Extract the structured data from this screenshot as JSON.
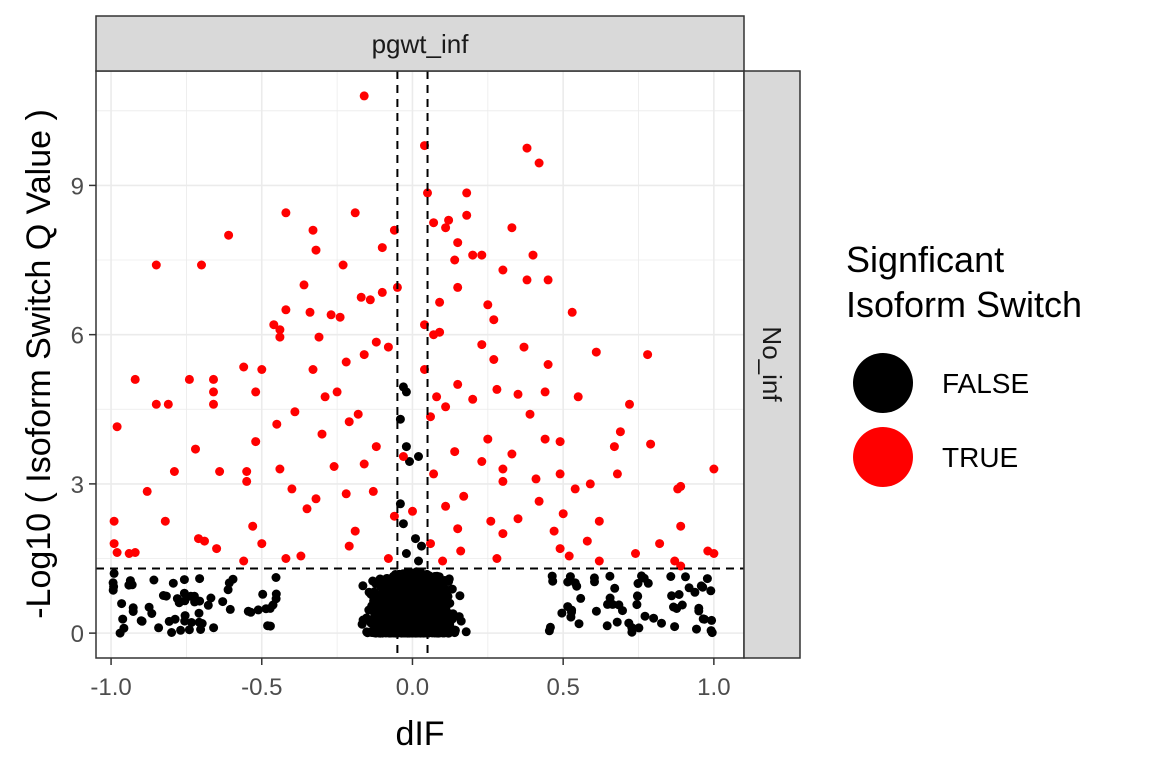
{
  "chart_data": {
    "type": "scatter",
    "facet": {
      "column": "pgwt_inf",
      "row": "No_inf"
    },
    "xlabel": "dIF",
    "ylabel": "-Log10 ( Isoform Switch Q Value )",
    "xlim": [
      -1.05,
      1.1
    ],
    "ylim": [
      -0.5,
      11.3
    ],
    "x_ticks": [
      -1.0,
      -0.5,
      0.0,
      0.5,
      1.0
    ],
    "x_tick_labels": [
      "-1.0",
      "-0.5",
      "0.0",
      "0.5",
      "1.0"
    ],
    "y_ticks": [
      0,
      3,
      6,
      9
    ],
    "y_tick_labels": [
      "0",
      "3",
      "6",
      "9"
    ],
    "grid": true,
    "reference_lines": {
      "x": [
        -0.05,
        0.05
      ],
      "y": [
        1.3
      ]
    },
    "legend": {
      "title_lines": [
        "Signficant",
        "Isoform Switch"
      ],
      "placement": "right",
      "entries": [
        {
          "label": "FALSE",
          "color": "#000000"
        },
        {
          "label": "TRUE",
          "color": "#ff0000"
        }
      ]
    },
    "series": [
      {
        "name": "TRUE",
        "color": "#ff0000",
        "points": [
          [
            -0.16,
            10.8
          ],
          [
            0.04,
            9.8
          ],
          [
            0.38,
            9.75
          ],
          [
            0.42,
            9.45
          ],
          [
            0.18,
            8.85
          ],
          [
            0.05,
            8.85
          ],
          [
            -0.42,
            8.45
          ],
          [
            -0.19,
            8.45
          ],
          [
            0.18,
            8.4
          ],
          [
            0.12,
            8.3
          ],
          [
            0.07,
            8.25
          ],
          [
            0.11,
            8.15
          ],
          [
            0.33,
            8.15
          ],
          [
            -0.33,
            8.1
          ],
          [
            -0.06,
            8.1
          ],
          [
            -0.61,
            8.0
          ],
          [
            0.15,
            7.85
          ],
          [
            -0.1,
            7.75
          ],
          [
            -0.32,
            7.7
          ],
          [
            0.2,
            7.6
          ],
          [
            0.23,
            7.6
          ],
          [
            0.4,
            7.6
          ],
          [
            0.14,
            7.5
          ],
          [
            -0.85,
            7.4
          ],
          [
            -0.7,
            7.4
          ],
          [
            -0.23,
            7.4
          ],
          [
            0.3,
            7.3
          ],
          [
            0.38,
            7.1
          ],
          [
            0.45,
            7.1
          ],
          [
            -0.36,
            7.0
          ],
          [
            0.15,
            6.95
          ],
          [
            -0.05,
            6.95
          ],
          [
            -0.1,
            6.85
          ],
          [
            -0.17,
            6.75
          ],
          [
            -0.14,
            6.7
          ],
          [
            0.09,
            6.65
          ],
          [
            0.25,
            6.6
          ],
          [
            -0.42,
            6.5
          ],
          [
            0.53,
            6.45
          ],
          [
            -0.34,
            6.45
          ],
          [
            -0.27,
            6.4
          ],
          [
            -0.24,
            6.35
          ],
          [
            0.27,
            6.3
          ],
          [
            -0.46,
            6.2
          ],
          [
            0.04,
            6.2
          ],
          [
            -0.44,
            6.1
          ],
          [
            0.09,
            6.05
          ],
          [
            0.07,
            6.0
          ],
          [
            -0.44,
            5.95
          ],
          [
            -0.31,
            5.95
          ],
          [
            -0.12,
            5.85
          ],
          [
            0.23,
            5.8
          ],
          [
            0.37,
            5.75
          ],
          [
            -0.08,
            5.75
          ],
          [
            0.61,
            5.65
          ],
          [
            0.78,
            5.6
          ],
          [
            -0.16,
            5.6
          ],
          [
            0.27,
            5.5
          ],
          [
            -0.22,
            5.45
          ],
          [
            0.45,
            5.4
          ],
          [
            -0.56,
            5.35
          ],
          [
            -0.5,
            5.3
          ],
          [
            -0.33,
            5.3
          ],
          [
            0.04,
            5.3
          ],
          [
            -0.74,
            5.1
          ],
          [
            -0.66,
            5.1
          ],
          [
            -0.92,
            5.1
          ],
          [
            0.15,
            5.0
          ],
          [
            -0.66,
            4.85
          ],
          [
            -0.52,
            4.85
          ],
          [
            -0.25,
            4.85
          ],
          [
            0.28,
            4.9
          ],
          [
            0.35,
            4.8
          ],
          [
            0.44,
            4.85
          ],
          [
            0.55,
            4.75
          ],
          [
            -0.29,
            4.75
          ],
          [
            0.08,
            4.75
          ],
          [
            0.2,
            4.7
          ],
          [
            -0.85,
            4.6
          ],
          [
            -0.81,
            4.6
          ],
          [
            -0.66,
            4.6
          ],
          [
            0.72,
            4.6
          ],
          [
            0.11,
            4.55
          ],
          [
            -0.39,
            4.45
          ],
          [
            -0.18,
            4.4
          ],
          [
            0.39,
            4.4
          ],
          [
            0.06,
            4.35
          ],
          [
            -0.21,
            4.25
          ],
          [
            -0.45,
            4.2
          ],
          [
            -0.98,
            4.15
          ],
          [
            0.69,
            4.05
          ],
          [
            -0.3,
            4.0
          ],
          [
            0.25,
            3.9
          ],
          [
            0.44,
            3.9
          ],
          [
            0.49,
            3.85
          ],
          [
            -0.52,
            3.85
          ],
          [
            -0.72,
            3.7
          ],
          [
            0.67,
            3.75
          ],
          [
            0.79,
            3.8
          ],
          [
            -0.12,
            3.75
          ],
          [
            0.14,
            3.65
          ],
          [
            0.33,
            3.6
          ],
          [
            -0.03,
            3.55
          ],
          [
            0.23,
            3.45
          ],
          [
            -0.16,
            3.4
          ],
          [
            -0.26,
            3.35
          ],
          [
            -0.44,
            3.3
          ],
          [
            0.3,
            3.3
          ],
          [
            -0.79,
            3.25
          ],
          [
            -0.64,
            3.25
          ],
          [
            -0.55,
            3.25
          ],
          [
            0.49,
            3.2
          ],
          [
            0.07,
            3.2
          ],
          [
            0.68,
            3.2
          ],
          [
            1.0,
            3.3
          ],
          [
            0.41,
            3.1
          ],
          [
            -0.55,
            3.05
          ],
          [
            0.3,
            3.05
          ],
          [
            0.59,
            3.0
          ],
          [
            0.89,
            2.95
          ],
          [
            0.88,
            2.9
          ],
          [
            -0.4,
            2.9
          ],
          [
            -0.13,
            2.85
          ],
          [
            0.54,
            2.9
          ],
          [
            -0.88,
            2.85
          ],
          [
            -0.22,
            2.8
          ],
          [
            0.17,
            2.75
          ],
          [
            -0.32,
            2.7
          ],
          [
            0.42,
            2.65
          ],
          [
            0.11,
            2.55
          ],
          [
            -0.35,
            2.5
          ],
          [
            0.0,
            2.45
          ],
          [
            0.5,
            2.4
          ],
          [
            -0.06,
            2.35
          ],
          [
            0.35,
            2.3
          ],
          [
            -0.82,
            2.25
          ],
          [
            0.26,
            2.25
          ],
          [
            -0.99,
            2.25
          ],
          [
            0.62,
            2.25
          ],
          [
            0.89,
            2.15
          ],
          [
            -0.53,
            2.15
          ],
          [
            0.15,
            2.1
          ],
          [
            -0.19,
            2.05
          ],
          [
            0.47,
            2.05
          ],
          [
            0.3,
            2.0
          ],
          [
            -0.71,
            1.9
          ],
          [
            -0.69,
            1.85
          ],
          [
            0.58,
            1.85
          ],
          [
            0.06,
            1.8
          ],
          [
            -0.5,
            1.8
          ],
          [
            -0.99,
            1.8
          ],
          [
            0.82,
            1.8
          ],
          [
            -0.21,
            1.75
          ],
          [
            -0.65,
            1.7
          ],
          [
            0.49,
            1.7
          ],
          [
            0.16,
            1.65
          ],
          [
            -0.94,
            1.6
          ],
          [
            -0.92,
            1.62
          ],
          [
            -0.98,
            1.62
          ],
          [
            0.98,
            1.65
          ],
          [
            1.0,
            1.6
          ],
          [
            0.74,
            1.6
          ],
          [
            0.52,
            1.55
          ],
          [
            -0.37,
            1.55
          ],
          [
            0.28,
            1.5
          ],
          [
            -0.42,
            1.5
          ],
          [
            0.87,
            1.45
          ],
          [
            -0.08,
            1.5
          ],
          [
            0.1,
            1.45
          ],
          [
            0.62,
            1.45
          ],
          [
            -0.56,
            1.45
          ],
          [
            0.89,
            1.35
          ]
        ]
      }
    ]
  }
}
